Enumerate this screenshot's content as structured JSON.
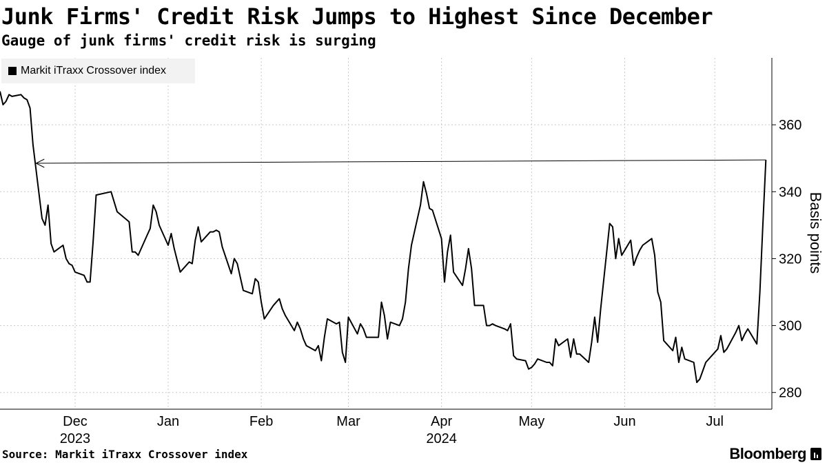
{
  "header": {
    "title": "Junk Firms' Credit Risk Jumps to Highest Since December",
    "subtitle": "Gauge of junk firms' credit risk is surging"
  },
  "footer": {
    "source": "Source: Markit iTraxx Crossover index",
    "brand": "Bloomberg",
    "brand_icon": "bloomberg-terminal-icon"
  },
  "colors": {
    "line": "#000000",
    "grid": "#c8c8c8",
    "legend_bg": "#f2f2f2"
  },
  "chart_data": {
    "type": "line",
    "title": "Junk Firms' Credit Risk Jumps to Highest Since December",
    "subtitle": "Gauge of junk firms' credit risk is surging",
    "ylabel": "Basis points",
    "xlabel": "",
    "ylim": [
      275,
      380
    ],
    "yticks": [
      280,
      300,
      320,
      340,
      360
    ],
    "y_axis_position": "right",
    "grid": true,
    "legend_placement": "top-left",
    "x_ticks": [
      {
        "date": "2023-12-01",
        "label": "Dec",
        "year": "2023"
      },
      {
        "date": "2024-01-01",
        "label": "Jan",
        "year": ""
      },
      {
        "date": "2024-02-01",
        "label": "Feb",
        "year": ""
      },
      {
        "date": "2024-03-01",
        "label": "Mar",
        "year": ""
      },
      {
        "date": "2024-04-01",
        "label": "Apr",
        "year": "2024"
      },
      {
        "date": "2024-05-01",
        "label": "May",
        "year": ""
      },
      {
        "date": "2024-06-01",
        "label": "Jun",
        "year": ""
      },
      {
        "date": "2024-07-01",
        "label": "Jul",
        "year": ""
      }
    ],
    "xlim": [
      "2023-11-20",
      "2024-08-03"
    ],
    "series": [
      {
        "name": "Markit iTraxx Crossover index",
        "points": [
          [
            "2023-11-20",
            370
          ],
          [
            "2023-11-21",
            366
          ],
          [
            "2023-11-22",
            367
          ],
          [
            "2023-11-23",
            369
          ],
          [
            "2023-11-24",
            368.5
          ],
          [
            "2023-11-27",
            369
          ],
          [
            "2023-11-28",
            368
          ],
          [
            "2023-11-29",
            367.5
          ],
          [
            "2023-11-30",
            365
          ],
          [
            "2023-12-01",
            354
          ],
          [
            "2023-12-04",
            332
          ],
          [
            "2023-12-05",
            330
          ],
          [
            "2023-12-06",
            336
          ],
          [
            "2023-12-07",
            324.5
          ],
          [
            "2023-12-08",
            322
          ],
          [
            "2023-12-11",
            324
          ],
          [
            "2023-12-12",
            320
          ],
          [
            "2023-12-13",
            318.5
          ],
          [
            "2023-12-14",
            318
          ],
          [
            "2023-12-15",
            316
          ],
          [
            "2023-12-18",
            315
          ],
          [
            "2023-12-19",
            313
          ],
          [
            "2023-12-20",
            313
          ],
          [
            "2023-12-21",
            325
          ],
          [
            "2023-12-22",
            339
          ],
          [
            "2023-12-27",
            340
          ],
          [
            "2023-12-28",
            337
          ],
          [
            "2023-12-29",
            334
          ],
          [
            "2024-01-02",
            331
          ],
          [
            "2024-01-03",
            322
          ],
          [
            "2024-01-04",
            322
          ],
          [
            "2024-01-05",
            321
          ],
          [
            "2024-01-08",
            327
          ],
          [
            "2024-01-09",
            329
          ],
          [
            "2024-01-10",
            336
          ],
          [
            "2024-01-11",
            334
          ],
          [
            "2024-01-12",
            330
          ],
          [
            "2024-01-15",
            324
          ],
          [
            "2024-01-16",
            327.5
          ],
          [
            "2024-01-17",
            323
          ],
          [
            "2024-01-18",
            319.5
          ],
          [
            "2024-01-19",
            316
          ],
          [
            "2024-01-22",
            319
          ],
          [
            "2024-01-23",
            318.5
          ],
          [
            "2024-01-24",
            325.5
          ],
          [
            "2024-01-25",
            329.5
          ],
          [
            "2024-01-26",
            325
          ],
          [
            "2024-01-29",
            328
          ],
          [
            "2024-01-30",
            328
          ],
          [
            "2024-01-31",
            328.5
          ],
          [
            "2024-02-01",
            328
          ],
          [
            "2024-02-02",
            323.5
          ],
          [
            "2024-02-05",
            315.5
          ],
          [
            "2024-02-06",
            320
          ],
          [
            "2024-02-07",
            318.5
          ],
          [
            "2024-02-08",
            314.5
          ],
          [
            "2024-02-09",
            310.5
          ],
          [
            "2024-02-12",
            309.5
          ],
          [
            "2024-02-13",
            314
          ],
          [
            "2024-02-14",
            313
          ],
          [
            "2024-02-15",
            307
          ],
          [
            "2024-02-16",
            302
          ],
          [
            "2024-02-19",
            306
          ],
          [
            "2024-02-20",
            307
          ],
          [
            "2024-02-21",
            308
          ],
          [
            "2024-02-22",
            305
          ],
          [
            "2024-02-23",
            303
          ],
          [
            "2024-02-26",
            298.5
          ],
          [
            "2024-02-27",
            301
          ],
          [
            "2024-02-28",
            299
          ],
          [
            "2024-02-29",
            296
          ],
          [
            "2024-03-01",
            294
          ],
          [
            "2024-03-04",
            292.5
          ],
          [
            "2024-03-05",
            294
          ],
          [
            "2024-03-06",
            289.5
          ],
          [
            "2024-03-07",
            296.5
          ],
          [
            "2024-03-08",
            302
          ],
          [
            "2024-03-11",
            300.5
          ],
          [
            "2024-03-12",
            301
          ],
          [
            "2024-03-13",
            292
          ],
          [
            "2024-03-14",
            289
          ],
          [
            "2024-03-15",
            302.5
          ],
          [
            "2024-03-18",
            297.5
          ],
          [
            "2024-03-19",
            300.5
          ],
          [
            "2024-03-20",
            299
          ],
          [
            "2024-03-21",
            296.5
          ],
          [
            "2024-03-22",
            296.5
          ],
          [
            "2024-03-25",
            296.5
          ],
          [
            "2024-03-26",
            307
          ],
          [
            "2024-03-27",
            303
          ],
          [
            "2024-03-28",
            296
          ],
          [
            "2024-03-29",
            301
          ],
          [
            "2024-04-01",
            300
          ],
          [
            "2024-04-02",
            302
          ],
          [
            "2024-04-03",
            307
          ],
          [
            "2024-04-04",
            317
          ],
          [
            "2024-04-05",
            324
          ],
          [
            "2024-04-08",
            336
          ],
          [
            "2024-04-09",
            343
          ],
          [
            "2024-04-10",
            339.5
          ],
          [
            "2024-04-11",
            335
          ],
          [
            "2024-04-12",
            334.5
          ],
          [
            "2024-04-15",
            326
          ],
          [
            "2024-04-16",
            313
          ],
          [
            "2024-04-17",
            322
          ],
          [
            "2024-04-18",
            327
          ],
          [
            "2024-04-19",
            316
          ],
          [
            "2024-04-22",
            312
          ],
          [
            "2024-04-23",
            317
          ],
          [
            "2024-04-24",
            323
          ],
          [
            "2024-04-25",
            317
          ],
          [
            "2024-04-26",
            306
          ],
          [
            "2024-04-29",
            306
          ],
          [
            "2024-04-30",
            300
          ],
          [
            "2024-05-01",
            300
          ],
          [
            "2024-05-02",
            300.5
          ],
          [
            "2024-05-03",
            300
          ],
          [
            "2024-05-06",
            299
          ],
          [
            "2024-05-07",
            298.5
          ],
          [
            "2024-05-08",
            300.5
          ],
          [
            "2024-05-09",
            291
          ],
          [
            "2024-05-10",
            290
          ],
          [
            "2024-05-13",
            289.5
          ],
          [
            "2024-05-14",
            287
          ],
          [
            "2024-05-15",
            287.5
          ],
          [
            "2024-05-16",
            288.5
          ],
          [
            "2024-05-17",
            290
          ],
          [
            "2024-05-20",
            289
          ],
          [
            "2024-05-21",
            289
          ],
          [
            "2024-05-22",
            288
          ],
          [
            "2024-05-23",
            296
          ],
          [
            "2024-05-24",
            294
          ],
          [
            "2024-05-27",
            296
          ],
          [
            "2024-05-28",
            290.5
          ],
          [
            "2024-05-29",
            296
          ],
          [
            "2024-05-30",
            291.5
          ],
          [
            "2024-05-31",
            291.5
          ],
          [
            "2024-06-03",
            289
          ],
          [
            "2024-06-04",
            295
          ],
          [
            "2024-06-05",
            302.5
          ],
          [
            "2024-06-06",
            295
          ],
          [
            "2024-06-07",
            305
          ],
          [
            "2024-06-10",
            330.5
          ],
          [
            "2024-06-11",
            329.5
          ],
          [
            "2024-06-12",
            320
          ],
          [
            "2024-06-13",
            326
          ],
          [
            "2024-06-14",
            321
          ],
          [
            "2024-06-17",
            325.5
          ],
          [
            "2024-06-18",
            318
          ],
          [
            "2024-06-19",
            320.5
          ],
          [
            "2024-06-20",
            322.5
          ],
          [
            "2024-06-21",
            324
          ],
          [
            "2024-06-24",
            326
          ],
          [
            "2024-06-25",
            321
          ],
          [
            "2024-06-26",
            310
          ],
          [
            "2024-06-27",
            307
          ],
          [
            "2024-06-28",
            295.5
          ],
          [
            "2024-07-01",
            292.5
          ],
          [
            "2024-07-02",
            296.5
          ],
          [
            "2024-07-03",
            289
          ],
          [
            "2024-07-04",
            293.5
          ],
          [
            "2024-07-05",
            290
          ],
          [
            "2024-07-08",
            289
          ],
          [
            "2024-07-09",
            283
          ],
          [
            "2024-07-10",
            284
          ],
          [
            "2024-07-11",
            286.5
          ],
          [
            "2024-07-12",
            289
          ],
          [
            "2024-07-15",
            292
          ],
          [
            "2024-07-16",
            293
          ],
          [
            "2024-07-17",
            297
          ],
          [
            "2024-07-18",
            292
          ],
          [
            "2024-07-19",
            293
          ],
          [
            "2024-07-22",
            298
          ],
          [
            "2024-07-23",
            300
          ],
          [
            "2024-07-24",
            295.5
          ],
          [
            "2024-07-25",
            297.5
          ],
          [
            "2024-07-26",
            299
          ],
          [
            "2024-07-29",
            294.5
          ],
          [
            "2024-07-30",
            310
          ],
          [
            "2024-07-31",
            330
          ],
          [
            "2024-08-01",
            349.5
          ]
        ]
      }
    ],
    "annotations": [
      {
        "type": "arrow",
        "from": [
          "2024-08-01",
          349.5
        ],
        "to": [
          "2023-12-02",
          348.5
        ]
      }
    ]
  }
}
